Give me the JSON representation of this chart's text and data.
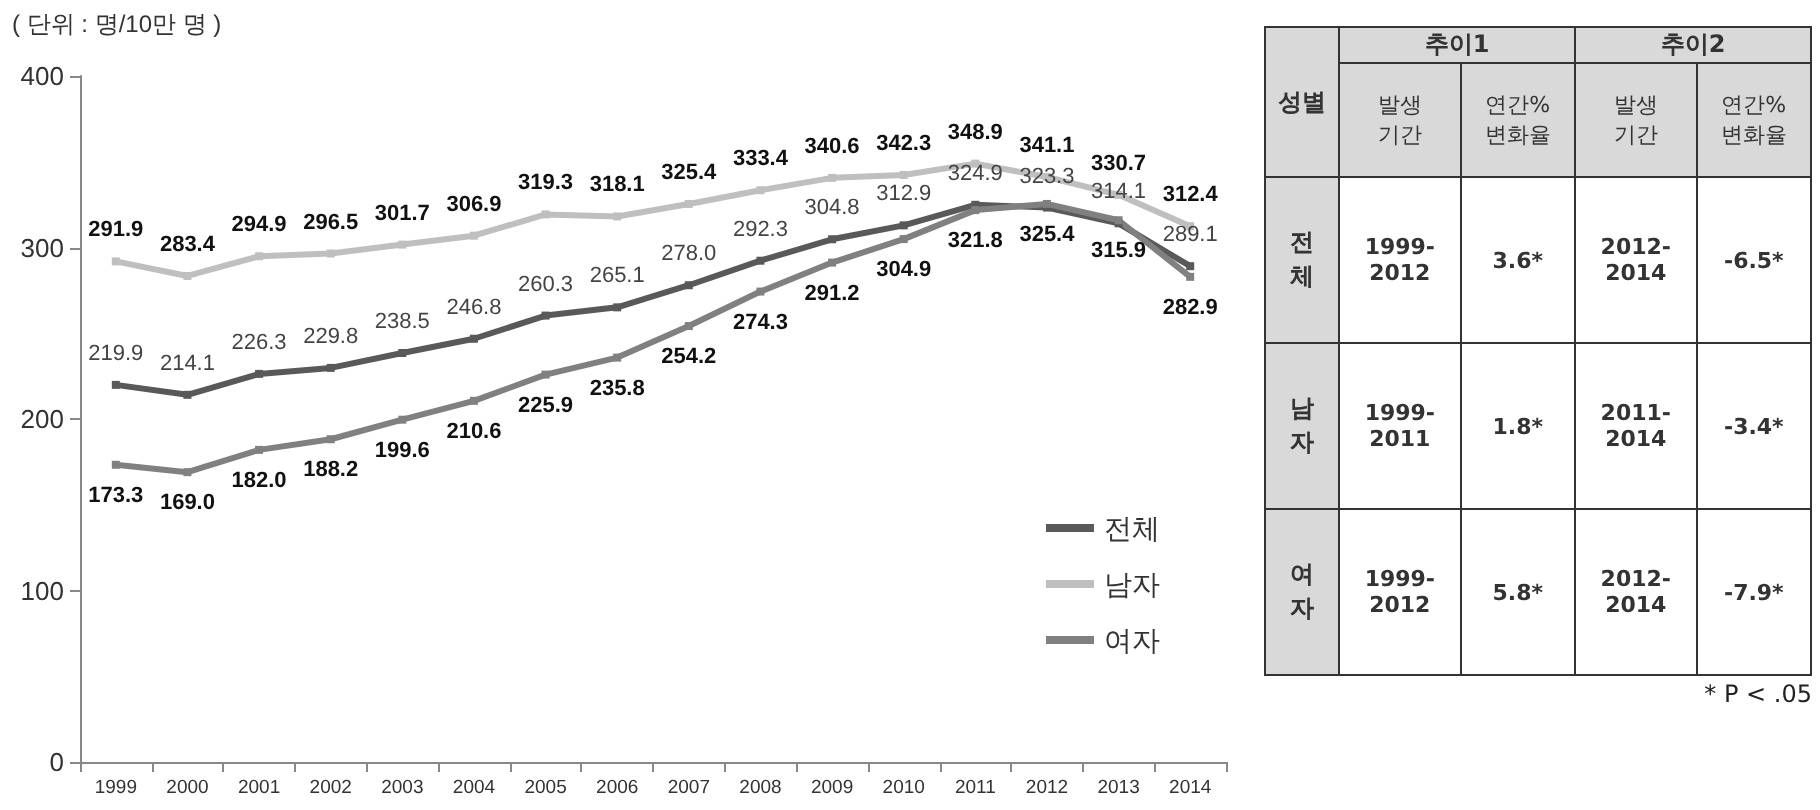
{
  "chart_data": [
    {
      "type": "line",
      "ylabel": "( 단위 : 명/10만 명 )",
      "categories": [
        "1999",
        "2000",
        "2001",
        "2002",
        "2003",
        "2004",
        "2005",
        "2006",
        "2007",
        "2008",
        "2009",
        "2010",
        "2011",
        "2012",
        "2013",
        "2014"
      ],
      "series": [
        {
          "name": "전체",
          "color": "#595959",
          "values": [
            219.9,
            214.1,
            226.3,
            229.8,
            238.5,
            246.8,
            260.3,
            265.1,
            278.0,
            292.3,
            304.8,
            312.9,
            324.9,
            323.3,
            314.1,
            289.1
          ],
          "value_labels": [
            "219.9",
            "214.1",
            "226.3",
            "229.8",
            "238.5",
            "246.8",
            "260.3",
            "265.1",
            "278.0",
            "292.3",
            "304.8",
            "312.9",
            "324.9",
            "323.3",
            "314.1",
            "289.1"
          ]
        },
        {
          "name": "남자",
          "color": "#bfbfbf",
          "values": [
            291.9,
            283.4,
            294.9,
            296.5,
            301.7,
            306.9,
            319.3,
            318.1,
            325.4,
            333.4,
            340.6,
            342.3,
            348.9,
            341.1,
            330.7,
            312.4
          ],
          "value_labels": [
            "291.9",
            "283.4",
            "294.9",
            "296.5",
            "301.7",
            "306.9",
            "319.3",
            "318.1",
            "325.4",
            "333.4",
            "340.6",
            "342.3",
            "348.9",
            "341.1",
            "330.7",
            "312.4"
          ]
        },
        {
          "name": "여자",
          "color": "#808080",
          "values": [
            173.3,
            169.0,
            182.0,
            188.2,
            199.6,
            210.6,
            225.9,
            235.8,
            254.2,
            274.3,
            291.2,
            304.9,
            321.8,
            325.4,
            315.9,
            282.9
          ],
          "value_labels": [
            "173.3",
            "169.0",
            "182.0",
            "188.2",
            "199.6",
            "210.6",
            "225.9",
            "235.8",
            "254.2",
            "274.3",
            "291.2",
            "304.9",
            "321.8",
            "325.4",
            "315.9",
            "282.9"
          ]
        }
      ],
      "ylim": [
        0,
        400
      ],
      "yticks": [
        0,
        100,
        200,
        300,
        400
      ],
      "grid": false,
      "legend": "right",
      "marker": "square",
      "line_style": "solid"
    },
    {
      "type": "other",
      "annotations": [
        "성별",
        "추이1",
        "추이2",
        "발생\n기간",
        "연간%\n변화율",
        "발생\n기간",
        "연간%\n변화율",
        "전\n체",
        "1999-\n2012",
        "3.6*",
        "2012-\n2014",
        "-6.5*",
        "남\n자",
        "1999-\n2011",
        "1.8*",
        "2011-\n2014",
        "-3.4*",
        "여\n자",
        "1999-\n2012",
        "5.8*",
        "2012-\n2014",
        "-7.9*",
        "* P < .05"
      ]
    }
  ]
}
